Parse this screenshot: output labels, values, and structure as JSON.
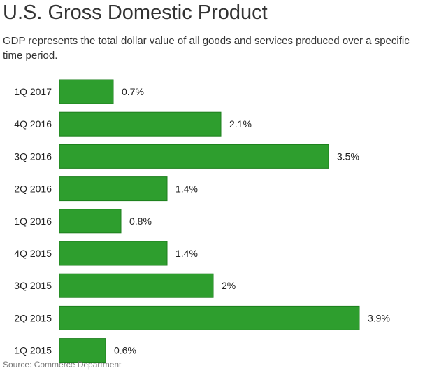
{
  "header": {
    "title": "U.S. Gross Domestic Product",
    "subtitle": "GDP represents the total dollar value of all goods and services produced over a specific time period."
  },
  "footer": {
    "source": "Source: Commerce Department"
  },
  "colors": {
    "bar_fill": "#2e9e2e",
    "bar_stroke": "#1d7f1d"
  },
  "chart_data": {
    "type": "bar",
    "orientation": "horizontal",
    "title": "U.S. Gross Domestic Product",
    "subtitle": "GDP represents the total dollar value of all goods and services produced over a specific time period.",
    "xlabel": "",
    "ylabel": "",
    "categories": [
      "1Q 2017",
      "4Q 2016",
      "3Q 2016",
      "2Q 2016",
      "1Q 2016",
      "4Q 2015",
      "3Q 2015",
      "2Q 2015",
      "1Q 2015"
    ],
    "values": [
      0.7,
      2.1,
      3.5,
      1.4,
      0.8,
      1.4,
      2,
      3.9,
      0.6
    ],
    "value_labels": [
      "0.7%",
      "2.1%",
      "3.5%",
      "1.4%",
      "0.8%",
      "1.4%",
      "2%",
      "3.9%",
      "0.6%"
    ],
    "xlim": [
      0,
      5.6
    ],
    "grid": false,
    "legend": "none"
  }
}
